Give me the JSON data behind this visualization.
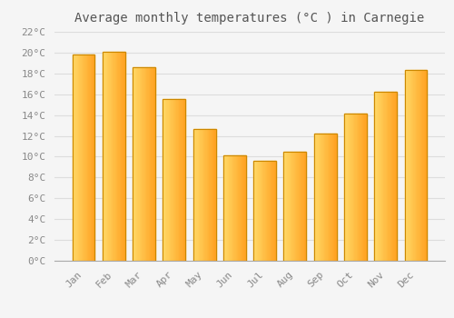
{
  "title": "Average monthly temperatures (°C ) in Carnegie",
  "months": [
    "Jan",
    "Feb",
    "Mar",
    "Apr",
    "May",
    "Jun",
    "Jul",
    "Aug",
    "Sep",
    "Oct",
    "Nov",
    "Dec"
  ],
  "values": [
    19.8,
    20.1,
    18.6,
    15.5,
    12.7,
    10.1,
    9.6,
    10.5,
    12.2,
    14.1,
    16.2,
    18.3
  ],
  "bar_color_light": "#FFD966",
  "bar_color_dark": "#FFA020",
  "bar_border_color": "#CC8800",
  "ylim": [
    0,
    22
  ],
  "yticks": [
    0,
    2,
    4,
    6,
    8,
    10,
    12,
    14,
    16,
    18,
    20,
    22
  ],
  "background_color": "#f5f5f5",
  "grid_color": "#dddddd",
  "title_fontsize": 10,
  "tick_fontsize": 8,
  "tick_color": "#888888",
  "title_color": "#555555"
}
